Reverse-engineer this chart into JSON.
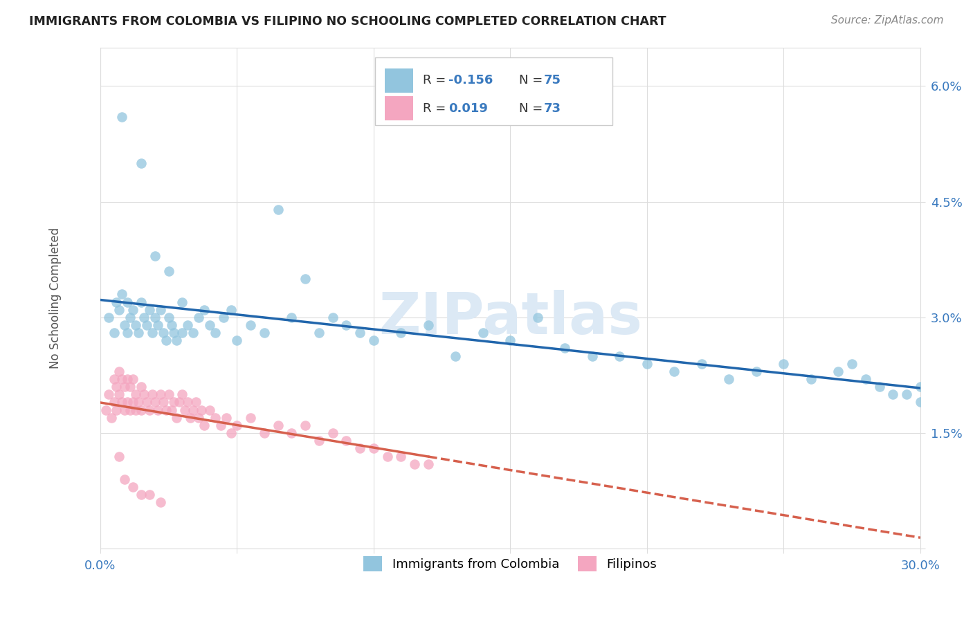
{
  "title": "IMMIGRANTS FROM COLOMBIA VS FILIPINO NO SCHOOLING COMPLETED CORRELATION CHART",
  "source": "Source: ZipAtlas.com",
  "ylabel": "No Schooling Completed",
  "xlim": [
    0.0,
    0.3
  ],
  "ylim": [
    0.0,
    0.065
  ],
  "xtick_vals": [
    0.0,
    0.05,
    0.1,
    0.15,
    0.2,
    0.25,
    0.3
  ],
  "xtick_labels": [
    "0.0%",
    "",
    "",
    "",
    "",
    "",
    "30.0%"
  ],
  "ytick_vals": [
    0.0,
    0.015,
    0.03,
    0.045,
    0.06
  ],
  "ytick_labels": [
    "",
    "1.5%",
    "3.0%",
    "4.5%",
    "6.0%"
  ],
  "legend1_r": "-0.156",
  "legend1_n": "75",
  "legend2_r": "0.019",
  "legend2_n": "73",
  "blue_color": "#92c5de",
  "pink_color": "#f4a6c0",
  "blue_line_color": "#2166ac",
  "pink_line_color": "#d6604d",
  "watermark_color": "#dce9f5",
  "tick_color": "#3a7abf",
  "label_color": "#555555",
  "title_color": "#222222",
  "source_color": "#888888",
  "grid_color": "#dddddd",
  "legend_text_color": "#333333",
  "legend_val_color": "#3a7abf",
  "blue_x": [
    0.003,
    0.005,
    0.006,
    0.007,
    0.008,
    0.009,
    0.01,
    0.01,
    0.011,
    0.012,
    0.013,
    0.014,
    0.015,
    0.016,
    0.017,
    0.018,
    0.019,
    0.02,
    0.021,
    0.022,
    0.023,
    0.024,
    0.025,
    0.026,
    0.027,
    0.028,
    0.03,
    0.032,
    0.034,
    0.036,
    0.038,
    0.04,
    0.042,
    0.045,
    0.048,
    0.05,
    0.055,
    0.06,
    0.065,
    0.07,
    0.075,
    0.08,
    0.085,
    0.09,
    0.095,
    0.1,
    0.11,
    0.12,
    0.13,
    0.14,
    0.15,
    0.16,
    0.17,
    0.18,
    0.19,
    0.2,
    0.21,
    0.22,
    0.23,
    0.24,
    0.25,
    0.26,
    0.27,
    0.275,
    0.28,
    0.285,
    0.29,
    0.295,
    0.3,
    0.3,
    0.008,
    0.015,
    0.02,
    0.025,
    0.03
  ],
  "blue_y": [
    0.03,
    0.028,
    0.032,
    0.031,
    0.033,
    0.029,
    0.032,
    0.028,
    0.03,
    0.031,
    0.029,
    0.028,
    0.032,
    0.03,
    0.029,
    0.031,
    0.028,
    0.03,
    0.029,
    0.031,
    0.028,
    0.027,
    0.03,
    0.029,
    0.028,
    0.027,
    0.028,
    0.029,
    0.028,
    0.03,
    0.031,
    0.029,
    0.028,
    0.03,
    0.031,
    0.027,
    0.029,
    0.028,
    0.044,
    0.03,
    0.035,
    0.028,
    0.03,
    0.029,
    0.028,
    0.027,
    0.028,
    0.029,
    0.025,
    0.028,
    0.027,
    0.03,
    0.026,
    0.025,
    0.025,
    0.024,
    0.023,
    0.024,
    0.022,
    0.023,
    0.024,
    0.022,
    0.023,
    0.024,
    0.022,
    0.021,
    0.02,
    0.02,
    0.021,
    0.019,
    0.056,
    0.05,
    0.038,
    0.036,
    0.032
  ],
  "pink_x": [
    0.002,
    0.003,
    0.004,
    0.005,
    0.005,
    0.006,
    0.006,
    0.007,
    0.007,
    0.008,
    0.008,
    0.009,
    0.009,
    0.01,
    0.01,
    0.011,
    0.011,
    0.012,
    0.012,
    0.013,
    0.013,
    0.014,
    0.015,
    0.015,
    0.016,
    0.017,
    0.018,
    0.019,
    0.02,
    0.021,
    0.022,
    0.023,
    0.024,
    0.025,
    0.026,
    0.027,
    0.028,
    0.029,
    0.03,
    0.031,
    0.032,
    0.033,
    0.034,
    0.035,
    0.036,
    0.037,
    0.038,
    0.04,
    0.042,
    0.044,
    0.046,
    0.048,
    0.05,
    0.055,
    0.06,
    0.065,
    0.07,
    0.075,
    0.08,
    0.085,
    0.09,
    0.095,
    0.1,
    0.105,
    0.11,
    0.115,
    0.12,
    0.007,
    0.009,
    0.012,
    0.015,
    0.018,
    0.022
  ],
  "pink_y": [
    0.018,
    0.02,
    0.017,
    0.022,
    0.019,
    0.021,
    0.018,
    0.023,
    0.02,
    0.022,
    0.019,
    0.021,
    0.018,
    0.022,
    0.019,
    0.021,
    0.018,
    0.022,
    0.019,
    0.02,
    0.018,
    0.019,
    0.021,
    0.018,
    0.02,
    0.019,
    0.018,
    0.02,
    0.019,
    0.018,
    0.02,
    0.019,
    0.018,
    0.02,
    0.018,
    0.019,
    0.017,
    0.019,
    0.02,
    0.018,
    0.019,
    0.017,
    0.018,
    0.019,
    0.017,
    0.018,
    0.016,
    0.018,
    0.017,
    0.016,
    0.017,
    0.015,
    0.016,
    0.017,
    0.015,
    0.016,
    0.015,
    0.016,
    0.014,
    0.015,
    0.014,
    0.013,
    0.013,
    0.012,
    0.012,
    0.011,
    0.011,
    0.012,
    0.009,
    0.008,
    0.007,
    0.007,
    0.006
  ]
}
